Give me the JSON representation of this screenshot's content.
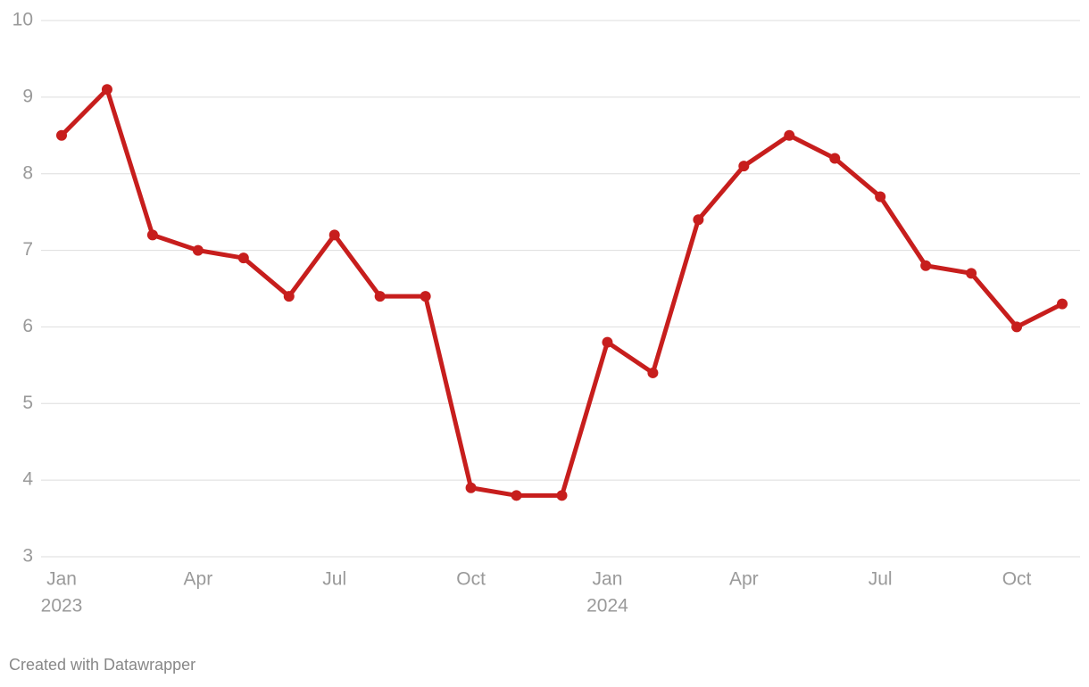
{
  "chart_data": {
    "type": "line",
    "categories": [
      "Jan",
      null,
      null,
      "Apr",
      null,
      null,
      "Jul",
      null,
      null,
      "Oct",
      null,
      null,
      "Jan",
      null,
      null,
      "Apr",
      null,
      null,
      "Jul",
      null,
      null,
      "Oct",
      null
    ],
    "category_years": [
      "2023",
      null,
      null,
      null,
      null,
      null,
      null,
      null,
      null,
      null,
      null,
      null,
      "2024",
      null,
      null,
      null,
      null,
      null,
      null,
      null,
      null,
      null,
      null
    ],
    "values": [
      8.5,
      9.1,
      7.2,
      7.0,
      6.9,
      6.4,
      7.2,
      6.4,
      6.4,
      3.9,
      3.8,
      3.8,
      5.8,
      5.4,
      7.4,
      8.1,
      8.5,
      8.2,
      7.7,
      6.8,
      6.7,
      6.0,
      6.3
    ],
    "color": "#c71e1d",
    "ylim": [
      3,
      10
    ],
    "yticks": [
      3,
      4,
      5,
      6,
      7,
      8,
      9,
      10
    ],
    "grid": true,
    "credit": "Created with Datawrapper"
  }
}
